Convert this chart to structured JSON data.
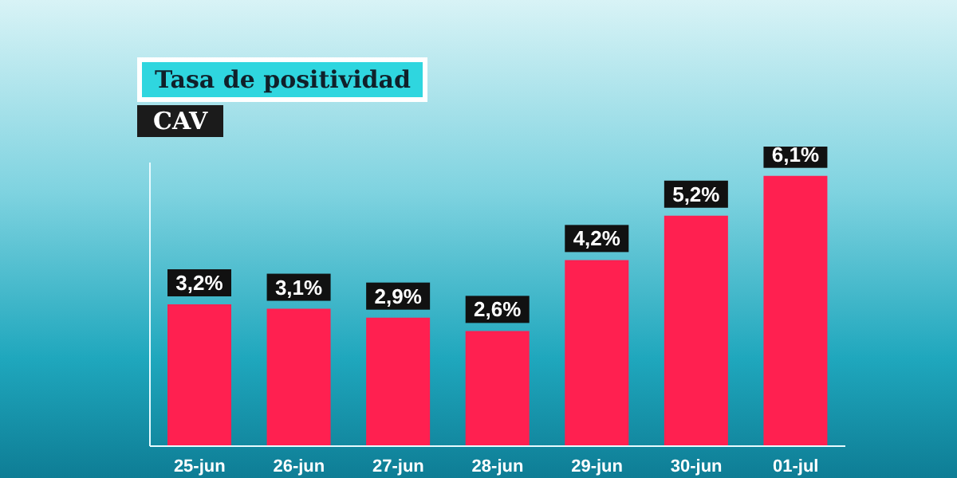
{
  "chart_data": {
    "type": "bar",
    "title": "Tasa de positividad",
    "subtitle": "CAV",
    "categories": [
      "25-jun",
      "26-jun",
      "27-jun",
      "28-jun",
      "29-jun",
      "30-jun",
      "01-jul"
    ],
    "values": [
      3.2,
      3.1,
      2.9,
      2.6,
      4.2,
      5.2,
      6.1
    ],
    "value_labels": [
      "3,2%",
      "3,1%",
      "2,9%",
      "2,6%",
      "4,2%",
      "5,2%",
      "6,1%"
    ],
    "color": "#ff2050",
    "relative": false,
    "ylim": [
      0,
      6.4
    ],
    "tick_labels": "x"
  }
}
